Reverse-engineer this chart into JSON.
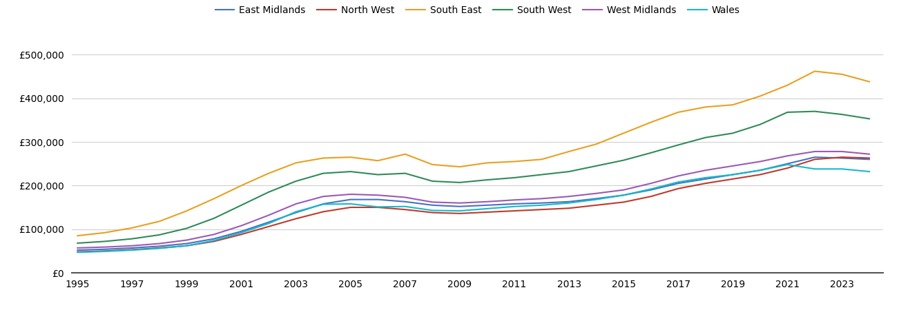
{
  "series": {
    "East Midlands": {
      "color": "#4472c4",
      "values": [
        52000,
        54000,
        57000,
        61000,
        67000,
        78000,
        95000,
        116000,
        138000,
        158000,
        168000,
        168000,
        163000,
        155000,
        152000,
        155000,
        158000,
        160000,
        163000,
        170000,
        178000,
        190000,
        205000,
        215000,
        225000,
        235000,
        250000,
        265000,
        263000,
        260000
      ]
    },
    "North West": {
      "color": "#c0392b",
      "values": [
        48000,
        50000,
        53000,
        57000,
        62000,
        72000,
        88000,
        106000,
        124000,
        140000,
        150000,
        150000,
        145000,
        138000,
        136000,
        139000,
        142000,
        145000,
        148000,
        155000,
        162000,
        175000,
        193000,
        205000,
        215000,
        225000,
        240000,
        260000,
        265000,
        263000
      ]
    },
    "South East": {
      "color": "#e8a020",
      "values": [
        85000,
        92000,
        103000,
        118000,
        142000,
        170000,
        200000,
        228000,
        252000,
        263000,
        265000,
        257000,
        272000,
        248000,
        243000,
        252000,
        255000,
        260000,
        278000,
        295000,
        320000,
        345000,
        368000,
        380000,
        385000,
        405000,
        430000,
        462000,
        455000,
        438000
      ]
    },
    "South West": {
      "color": "#2e8b57",
      "values": [
        68000,
        72000,
        78000,
        87000,
        102000,
        125000,
        155000,
        185000,
        210000,
        228000,
        232000,
        225000,
        228000,
        210000,
        207000,
        213000,
        218000,
        225000,
        232000,
        245000,
        258000,
        275000,
        293000,
        310000,
        320000,
        340000,
        368000,
        370000,
        363000,
        353000
      ]
    },
    "West Midlands": {
      "color": "#9b59b6",
      "values": [
        57000,
        59000,
        62000,
        67000,
        75000,
        88000,
        108000,
        132000,
        158000,
        175000,
        180000,
        178000,
        173000,
        162000,
        160000,
        163000,
        167000,
        170000,
        175000,
        182000,
        190000,
        205000,
        222000,
        235000,
        245000,
        255000,
        268000,
        278000,
        278000,
        272000
      ]
    },
    "Wales": {
      "color": "#17b8ce",
      "values": [
        47000,
        49000,
        52000,
        56000,
        62000,
        74000,
        92000,
        113000,
        140000,
        157000,
        158000,
        151000,
        152000,
        143000,
        142000,
        147000,
        152000,
        155000,
        160000,
        168000,
        178000,
        192000,
        208000,
        218000,
        225000,
        235000,
        248000,
        238000,
        238000,
        232000
      ]
    }
  },
  "years": [
    1995,
    1996,
    1997,
    1998,
    1999,
    2000,
    2001,
    2002,
    2003,
    2004,
    2005,
    2006,
    2007,
    2008,
    2009,
    2010,
    2011,
    2012,
    2013,
    2014,
    2015,
    2016,
    2017,
    2018,
    2019,
    2020,
    2021,
    2022,
    2023,
    2024
  ],
  "ylim": [
    0,
    540000
  ],
  "yticks": [
    0,
    100000,
    200000,
    300000,
    400000,
    500000
  ],
  "xticks": [
    1995,
    1997,
    1999,
    2001,
    2003,
    2005,
    2007,
    2009,
    2011,
    2013,
    2015,
    2017,
    2019,
    2021,
    2023
  ],
  "background_color": "#ffffff",
  "grid_color": "#d0d0d0",
  "legend_order": [
    "East Midlands",
    "North West",
    "South East",
    "South West",
    "West Midlands",
    "Wales"
  ]
}
